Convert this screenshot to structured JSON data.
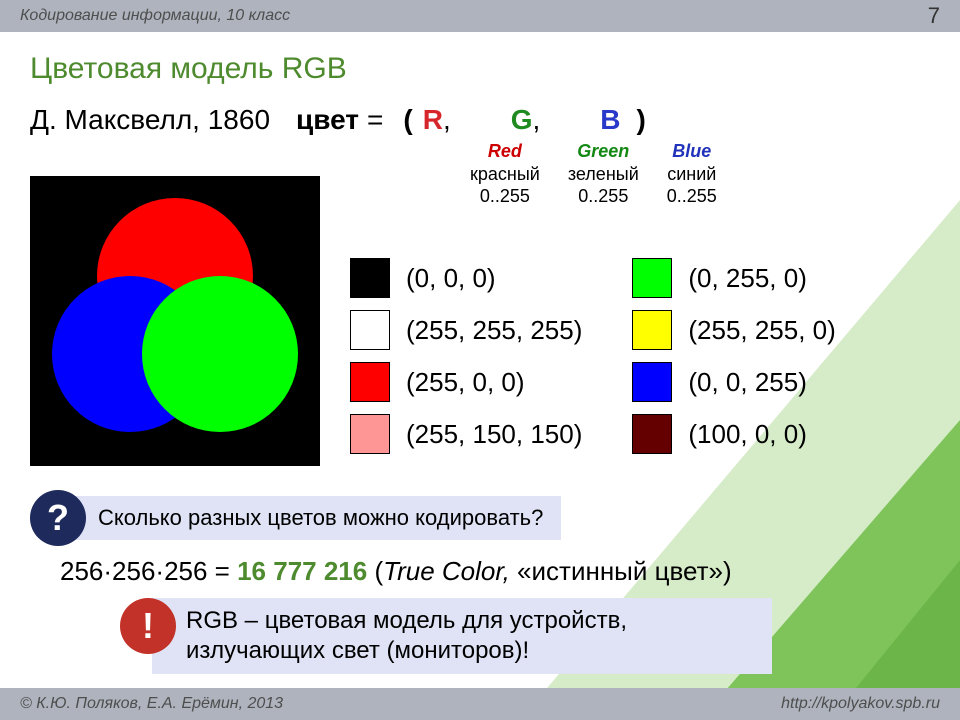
{
  "header": {
    "course": "Кодирование информации, 10 класс",
    "page": "7"
  },
  "footer": {
    "left": "© К.Ю. Поляков, Е.А. Ерёмин, 2013",
    "right": "http://kpolyakov.spb.ru"
  },
  "title": "Цветовая модель RGB",
  "formula": {
    "author": "Д. Максвелл, 1860",
    "label": "цвет",
    "eq": "=",
    "open": "(",
    "R": "R",
    "G": "G",
    "B": "B",
    "comma": ",",
    "close": ")"
  },
  "components": {
    "r": {
      "en": "Red",
      "ru": "красный",
      "range": "0..255",
      "color": "#d7262b"
    },
    "g": {
      "en": "Green",
      "ru": "зеленый",
      "range": "0..255",
      "color": "#1f8a1f"
    },
    "b": {
      "en": "Blue",
      "ru": "синий",
      "range": "0..255",
      "color": "#2939c9"
    }
  },
  "venn": {
    "bg": "#000000",
    "circles": {
      "r": "#ff0000",
      "g": "#00ff00",
      "b": "#0000ff",
      "rg": "#ffff00",
      "rb": "#ff00ff",
      "gb": "#00ffff",
      "rgb": "#ffffff"
    }
  },
  "swatches": {
    "left": [
      {
        "color": "#000000",
        "label": "(0, 0, 0)"
      },
      {
        "color": "#ffffff",
        "label": "(255, 255, 255)"
      },
      {
        "color": "#ff0000",
        "label": "(255, 0, 0)"
      },
      {
        "color": "#ff9696",
        "label": "(255, 150, 150)"
      }
    ],
    "right": [
      {
        "color": "#00ff00",
        "label": "(0, 255, 0)"
      },
      {
        "color": "#ffff00",
        "label": "(255, 255, 0)"
      },
      {
        "color": "#0000ff",
        "label": "(0, 0, 255)"
      },
      {
        "color": "#640000",
        "label": "(100, 0, 0)"
      }
    ]
  },
  "question": {
    "mark": "?",
    "text": "Сколько разных цветов можно кодировать?"
  },
  "calc": {
    "expr": "256·256·256 = ",
    "number": "16 777 216",
    "space": "  ",
    "open": "(",
    "tc": "True Color,",
    "rest": " «истинный цвет»)"
  },
  "note": {
    "mark": "!",
    "text": "RGB – цветовая модель для устройств, излучающих свет (мониторов)!"
  },
  "deco": {
    "poly1": "#d6ecc9",
    "poly2": "#7fc45a",
    "poly3": "#6cb649"
  }
}
